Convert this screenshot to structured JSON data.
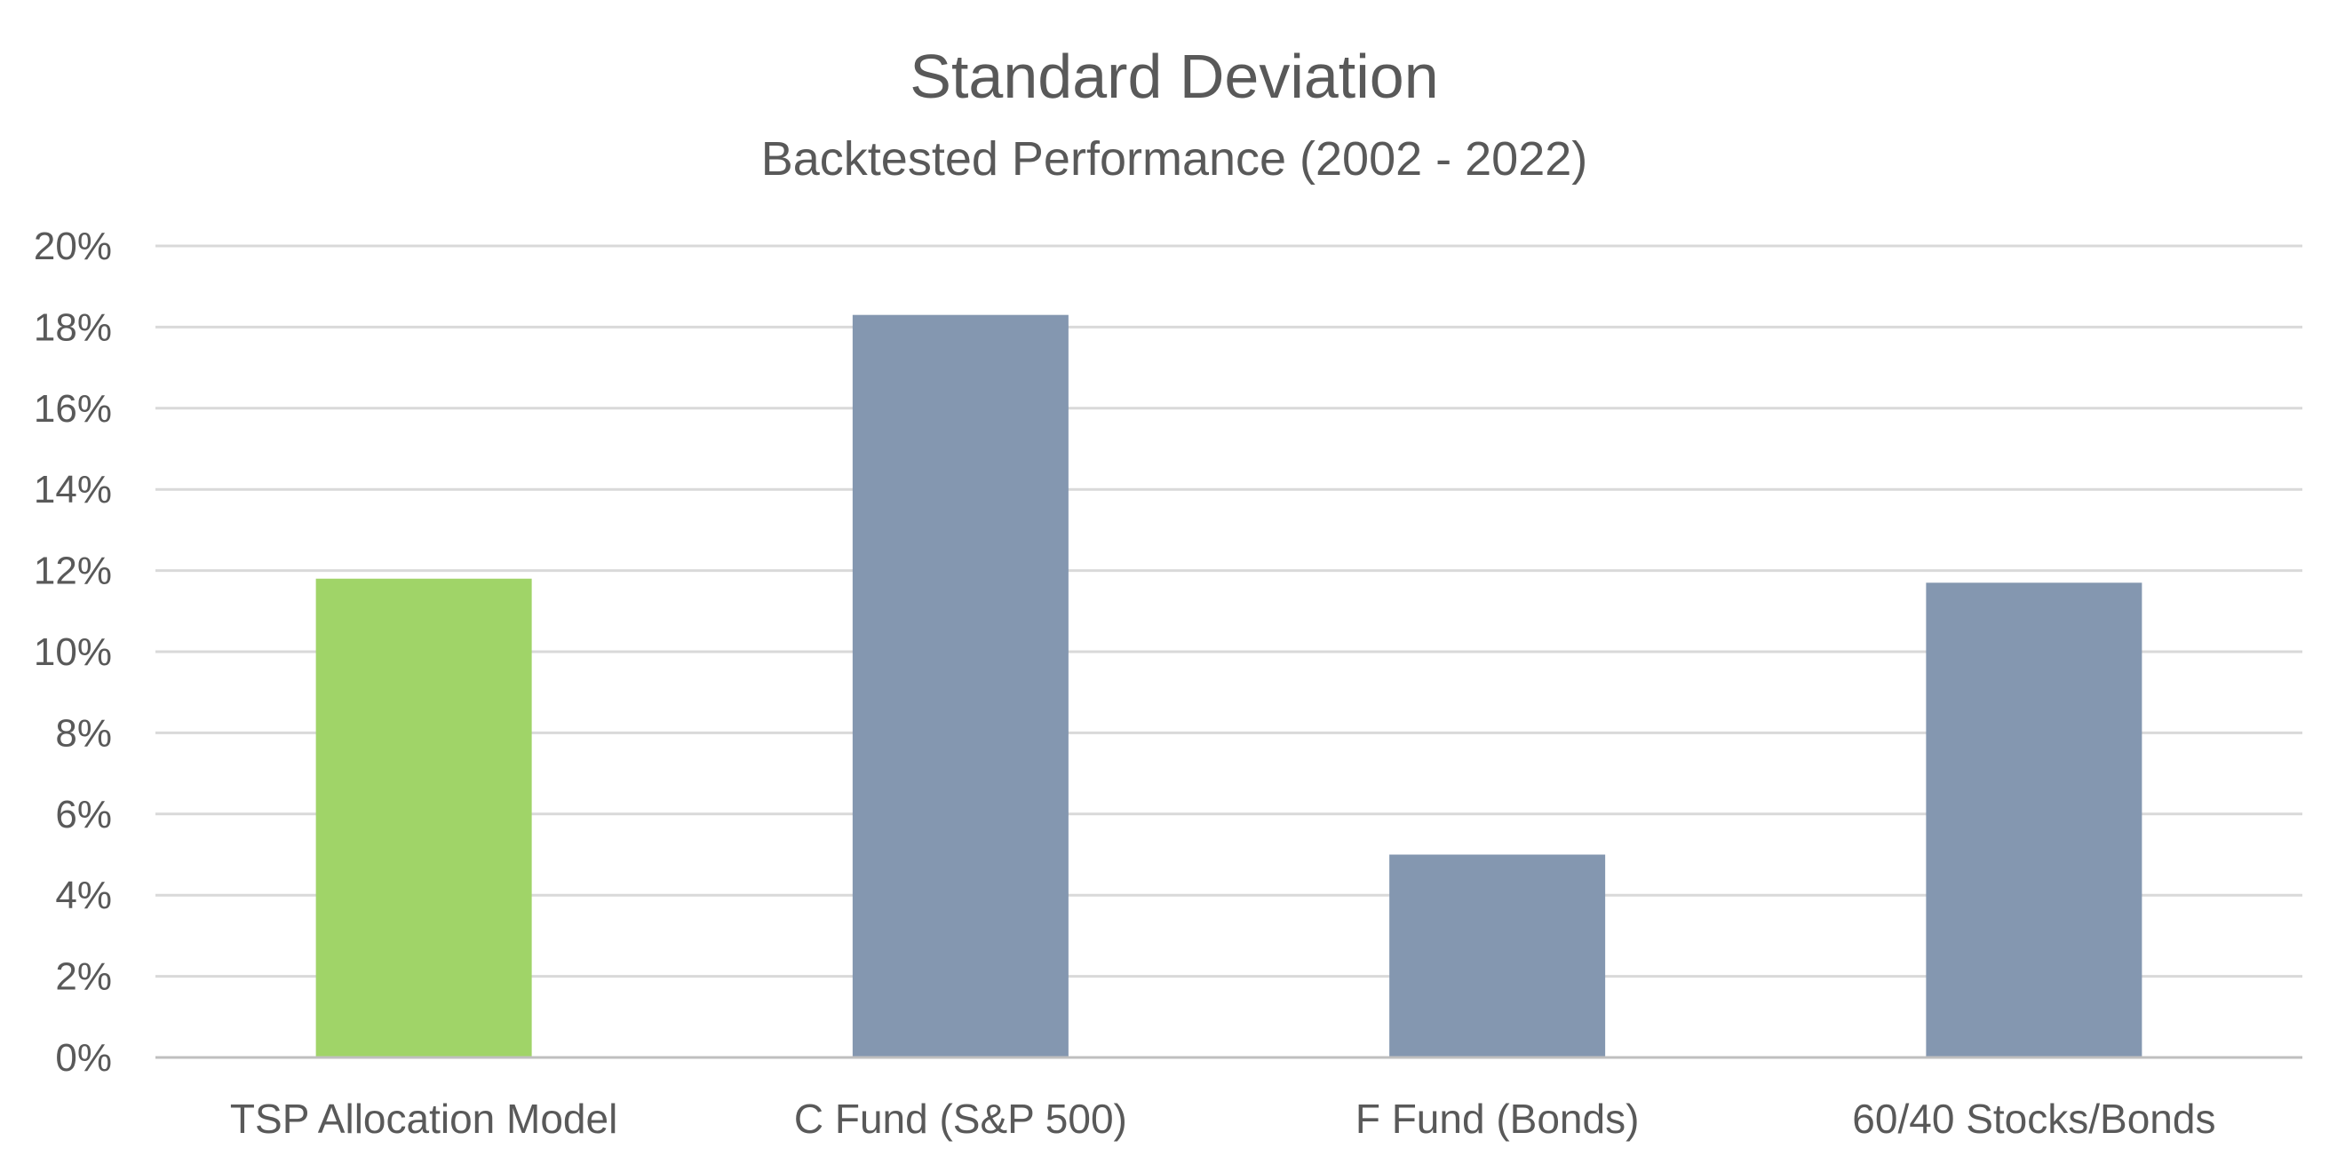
{
  "chart_data": {
    "type": "bar",
    "title": "Standard Deviation",
    "subtitle": "Backtested Performance (2002 - 2022)",
    "xlabel": "",
    "ylabel": "",
    "categories": [
      "TSP Allocation Model",
      "C Fund (S&P 500)",
      "F Fund (Bonds)",
      "60/40 Stocks/Bonds"
    ],
    "values": [
      11.8,
      18.3,
      5.0,
      11.7
    ],
    "value_unit": "%",
    "bar_colors": [
      "#a0d468",
      "#8497b0",
      "#8497b0",
      "#8497b0"
    ],
    "ylim": [
      0,
      20
    ],
    "y_ticks": [
      {
        "value": 0,
        "label": "0%"
      },
      {
        "value": 2,
        "label": "2%"
      },
      {
        "value": 4,
        "label": "4%"
      },
      {
        "value": 6,
        "label": "6%"
      },
      {
        "value": 8,
        "label": "8%"
      },
      {
        "value": 10,
        "label": "10%"
      },
      {
        "value": 12,
        "label": "12%"
      },
      {
        "value": 14,
        "label": "14%"
      },
      {
        "value": 16,
        "label": "16%"
      },
      {
        "value": 18,
        "label": "18%"
      },
      {
        "value": 20,
        "label": "20%"
      }
    ],
    "grid": true,
    "legend": "none"
  }
}
